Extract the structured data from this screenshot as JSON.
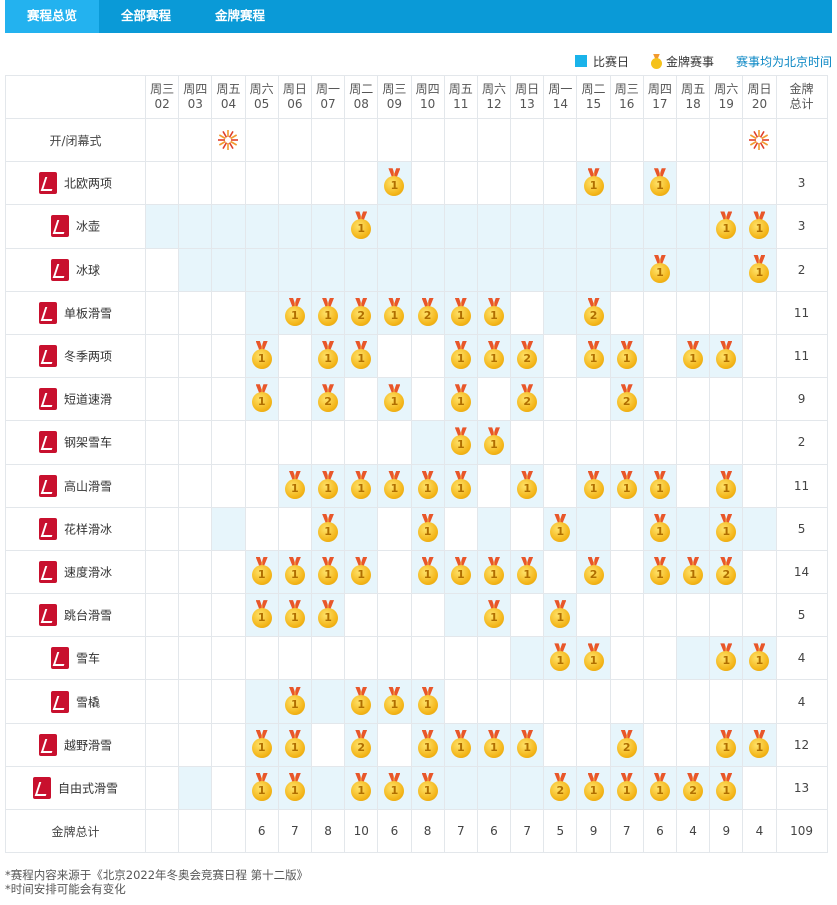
{
  "tabs": [
    {
      "label": "赛程总览",
      "active": true
    },
    {
      "label": "全部赛程",
      "active": false
    },
    {
      "label": "金牌赛程",
      "active": false
    }
  ],
  "legend": {
    "day_label": "比赛日",
    "medal_label": "金牌赛事",
    "timezone_note": "赛事均为北京时间",
    "day_color": "#1ab3ea"
  },
  "header": {
    "days": [
      {
        "weekday": "周三",
        "date": "02"
      },
      {
        "weekday": "周四",
        "date": "03"
      },
      {
        "weekday": "周五",
        "date": "04"
      },
      {
        "weekday": "周六",
        "date": "05"
      },
      {
        "weekday": "周日",
        "date": "06"
      },
      {
        "weekday": "周一",
        "date": "07"
      },
      {
        "weekday": "周二",
        "date": "08"
      },
      {
        "weekday": "周三",
        "date": "09"
      },
      {
        "weekday": "周四",
        "date": "10"
      },
      {
        "weekday": "周五",
        "date": "11"
      },
      {
        "weekday": "周六",
        "date": "12"
      },
      {
        "weekday": "周日",
        "date": "13"
      },
      {
        "weekday": "周一",
        "date": "14"
      },
      {
        "weekday": "周二",
        "date": "15"
      },
      {
        "weekday": "周三",
        "date": "16"
      },
      {
        "weekday": "周四",
        "date": "17"
      },
      {
        "weekday": "周五",
        "date": "18"
      },
      {
        "weekday": "周六",
        "date": "19"
      },
      {
        "weekday": "周日",
        "date": "20"
      }
    ],
    "total_label_line1": "金牌",
    "total_label_line2": "总计"
  },
  "ceremony": {
    "label": "开/闭幕式",
    "day_indexes": [
      2,
      18
    ],
    "icon": "firework-icon"
  },
  "sports": [
    {
      "name": "北欧两项",
      "days": [
        7,
        13,
        15
      ],
      "medals": {
        "7": 1,
        "13": 1,
        "15": 1
      },
      "total": "3"
    },
    {
      "name": "冰壶",
      "days": [
        0,
        1,
        2,
        3,
        4,
        5,
        6,
        7,
        8,
        9,
        10,
        11,
        12,
        13,
        14,
        15,
        16,
        17,
        18
      ],
      "medals": {
        "6": 1,
        "17": 1,
        "18": 1
      },
      "total": "3"
    },
    {
      "name": "冰球",
      "days": [
        1,
        2,
        3,
        4,
        5,
        6,
        7,
        8,
        9,
        10,
        11,
        12,
        13,
        14,
        15,
        16,
        17,
        18
      ],
      "medals": {
        "15": 1,
        "18": 1
      },
      "total": "2"
    },
    {
      "name": "单板滑雪",
      "days": [
        3,
        4,
        5,
        6,
        7,
        8,
        9,
        10,
        12,
        13
      ],
      "medals": {
        "4": 1,
        "5": 1,
        "6": 2,
        "7": 1,
        "8": 2,
        "9": 1,
        "10": 1,
        "13": 2
      },
      "total": "11"
    },
    {
      "name": "冬季两项",
      "days": [
        3,
        5,
        6,
        9,
        10,
        11,
        13,
        14,
        16,
        17
      ],
      "medals": {
        "3": 1,
        "5": 1,
        "6": 1,
        "9": 1,
        "10": 1,
        "11": 2,
        "13": 1,
        "14": 1,
        "16": 1,
        "17": 1
      },
      "total": "11"
    },
    {
      "name": "短道速滑",
      "days": [
        3,
        5,
        7,
        9,
        11,
        14
      ],
      "medals": {
        "3": 1,
        "5": 2,
        "7": 1,
        "9": 1,
        "11": 2,
        "14": 2
      },
      "total": "9"
    },
    {
      "name": "钢架雪车",
      "days": [
        8,
        9,
        10
      ],
      "medals": {
        "9": 1,
        "10": 1
      },
      "total": "2"
    },
    {
      "name": "高山滑雪",
      "days": [
        4,
        5,
        6,
        7,
        8,
        9,
        11,
        13,
        14,
        15,
        17
      ],
      "medals": {
        "4": 1,
        "5": 1,
        "6": 1,
        "7": 1,
        "8": 1,
        "9": 1,
        "11": 1,
        "13": 1,
        "14": 1,
        "15": 1,
        "17": 1
      },
      "total": "11"
    },
    {
      "name": "花样滑冰",
      "days": [
        2,
        5,
        6,
        8,
        10,
        12,
        13,
        15,
        16,
        17,
        18
      ],
      "medals": {
        "5": 1,
        "8": 1,
        "12": 1,
        "15": 1,
        "17": 1
      },
      "total": "5"
    },
    {
      "name": "速度滑冰",
      "days": [
        3,
        4,
        5,
        6,
        8,
        9,
        10,
        11,
        13,
        15,
        16,
        17
      ],
      "medals": {
        "3": 1,
        "4": 1,
        "5": 1,
        "6": 1,
        "8": 1,
        "9": 1,
        "10": 1,
        "11": 1,
        "13": 2,
        "15": 1,
        "16": 1,
        "17": 2
      },
      "total": "14"
    },
    {
      "name": "跳台滑雪",
      "days": [
        3,
        4,
        5,
        9,
        10,
        12
      ],
      "medals": {
        "3": 1,
        "4": 1,
        "5": 1,
        "10": 1,
        "12": 1
      },
      "total": "5"
    },
    {
      "name": "雪车",
      "days": [
        11,
        12,
        13,
        16,
        17,
        18
      ],
      "medals": {
        "12": 1,
        "13": 1,
        "17": 1,
        "18": 1
      },
      "total": "4"
    },
    {
      "name": "雪橇",
      "days": [
        3,
        4,
        5,
        6,
        7,
        8
      ],
      "medals": {
        "4": 1,
        "6": 1,
        "7": 1,
        "8": 1
      },
      "total": "4"
    },
    {
      "name": "越野滑雪",
      "days": [
        3,
        4,
        6,
        8,
        9,
        10,
        11,
        14,
        17,
        18
      ],
      "medals": {
        "3": 1,
        "4": 1,
        "6": 2,
        "8": 1,
        "9": 1,
        "10": 1,
        "11": 1,
        "14": 2,
        "17": 1,
        "18": 1
      },
      "total": "12"
    },
    {
      "name": "自由式滑雪",
      "days": [
        1,
        3,
        4,
        5,
        6,
        7,
        8,
        9,
        10,
        11,
        12,
        13,
        14,
        15,
        16,
        17
      ],
      "medals": {
        "3": 1,
        "4": 1,
        "6": 1,
        "7": 1,
        "8": 1,
        "12": 2,
        "13": 1,
        "14": 1,
        "15": 1,
        "16": 2,
        "17": 1
      },
      "total": "13"
    }
  ],
  "totals": {
    "label": "金牌总计",
    "values": [
      "",
      "",
      "",
      "6",
      "7",
      "8",
      "10",
      "6",
      "8",
      "7",
      "6",
      "7",
      "5",
      "9",
      "7",
      "6",
      "4",
      "9",
      "4"
    ],
    "grand_total": "109"
  },
  "notes": [
    "*赛程内容来源于《北京2022年冬奥会竞赛日程 第十二版》",
    "*时间安排可能会有变化"
  ]
}
